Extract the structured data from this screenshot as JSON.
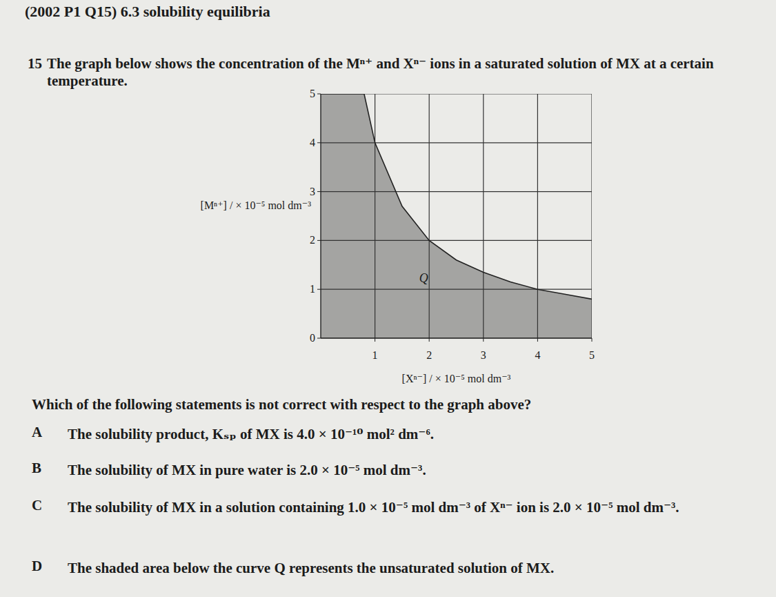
{
  "header": {
    "title": "(2002 P1 Q15) 6.3 solubility equilibria"
  },
  "question": {
    "number": "15",
    "text": "The graph below shows the concentration of the Mⁿ⁺ and Xⁿ⁻ ions in a saturated solution of MX at a certain temperature."
  },
  "chart_data": {
    "type": "area",
    "x": [
      0,
      0.8,
      1,
      1.5,
      2,
      2.5,
      3,
      3.5,
      4,
      4.5,
      5
    ],
    "values": [
      5,
      5,
      4,
      2.7,
      2,
      1.6,
      1.35,
      1.15,
      1,
      0.9,
      0.8
    ],
    "color": "#a4a4a2",
    "xlim": [
      0,
      5
    ],
    "ylim": [
      0,
      5
    ],
    "xticks": [
      1,
      2,
      3,
      4,
      5
    ],
    "yticks": [
      0,
      1,
      2,
      3,
      4,
      5
    ],
    "grid": true,
    "x_label": "[Xⁿ⁻] / × 10⁻⁵ mol dm⁻³",
    "y_label": "[Mⁿ⁺] / × 10⁻⁵ mol dm⁻³",
    "annotations": [
      {
        "text": "Q",
        "x": 1.9,
        "y": 1.15
      }
    ]
  },
  "instruction": {
    "before": "Which of the following statements is ",
    "emphasis": "not",
    "after": " correct with respect to the graph above?"
  },
  "options": [
    {
      "letter": "A",
      "text": "The solubility product, Kₛₚ of MX is 4.0 × 10⁻¹⁰ mol² dm⁻⁶."
    },
    {
      "letter": "B",
      "text": "The solubility of MX in pure water is 2.0 × 10⁻⁵ mol dm⁻³."
    },
    {
      "letter": "C",
      "text": "The solubility of MX in a solution containing 1.0 × 10⁻⁵ mol dm⁻³ of Xⁿ⁻ ion is 2.0 × 10⁻⁵ mol dm⁻³."
    },
    {
      "letter": "D",
      "text": "The shaded area below the curve Q represents the unsaturated solution of MX."
    }
  ]
}
